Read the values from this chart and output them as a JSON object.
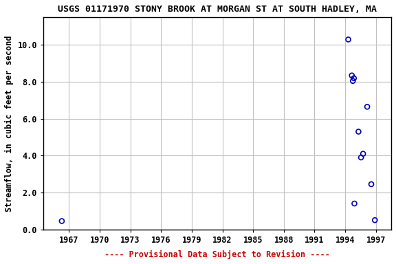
{
  "title": "USGS 01171970 STONY BROOK AT MORGAN ST AT SOUTH HADLEY, MA",
  "ylabel": "Streamflow, in cubic feet per second",
  "xlabel_note": "---- Provisional Data Subject to Revision ----",
  "x_data": [
    1966.3,
    1994.3,
    1994.65,
    1994.75,
    1995.3,
    1995.55,
    1994.85,
    1996.15,
    1995.75,
    1996.55,
    1994.9,
    1996.9
  ],
  "y_data": [
    0.45,
    10.3,
    8.35,
    8.05,
    5.3,
    3.9,
    8.2,
    6.65,
    4.1,
    2.45,
    1.4,
    0.5
  ],
  "xlim": [
    1964.5,
    1998.5
  ],
  "ylim": [
    0.0,
    11.5
  ],
  "xticks": [
    1967,
    1970,
    1973,
    1976,
    1979,
    1982,
    1985,
    1988,
    1991,
    1994,
    1997
  ],
  "yticks": [
    0.0,
    2.0,
    4.0,
    6.0,
    8.0,
    10.0
  ],
  "ytick_labels": [
    "0.0",
    "2.0",
    "4.0",
    "6.0",
    "8.0",
    "10.0"
  ],
  "marker_color": "#0000bb",
  "marker_size": 5,
  "marker_lw": 1.2,
  "title_fontsize": 9.5,
  "tick_fontsize": 8.5,
  "ylabel_fontsize": 8.5,
  "note_color": "#cc0000",
  "note_fontsize": 8.5,
  "bg_color": "#ffffff",
  "grid_color": "#c0c0c0",
  "grid_lw": 0.8
}
